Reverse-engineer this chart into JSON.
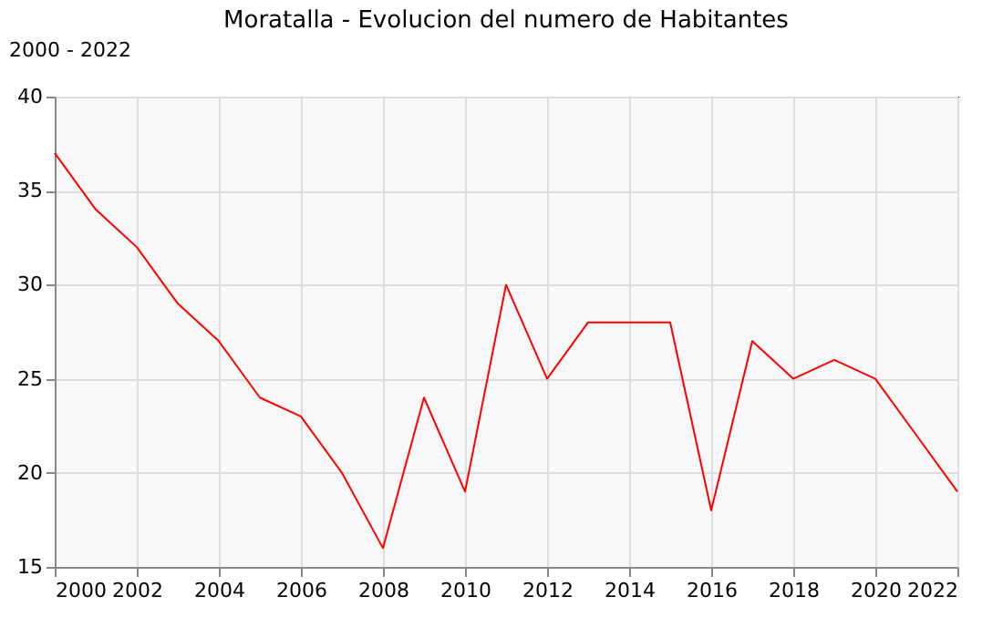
{
  "chart_data": {
    "type": "line",
    "title": "Moratalla - Evolucion del numero de Habitantes",
    "annotations": [
      "2000 - 2022"
    ],
    "x": [
      2000,
      2001,
      2002,
      2003,
      2004,
      2005,
      2006,
      2007,
      2008,
      2009,
      2010,
      2011,
      2012,
      2013,
      2014,
      2015,
      2016,
      2017,
      2018,
      2019,
      2020,
      2021,
      2022
    ],
    "series": [
      {
        "color": "#ff0000",
        "values": [
          37,
          34,
          32,
          29,
          27,
          24,
          23,
          20,
          16,
          24,
          19,
          30,
          25,
          28,
          28,
          28,
          18,
          27,
          25,
          26,
          25,
          22,
          19
        ]
      }
    ],
    "xlim": [
      2000,
      2022
    ],
    "xticks": [
      2000,
      2002,
      2004,
      2006,
      2008,
      2010,
      2012,
      2014,
      2016,
      2018,
      2020,
      2022
    ],
    "ylim": [
      15,
      40
    ],
    "yticks": [
      15,
      20,
      25,
      30,
      35,
      40
    ],
    "grid": true,
    "marker": "none",
    "line_style": "solid"
  }
}
